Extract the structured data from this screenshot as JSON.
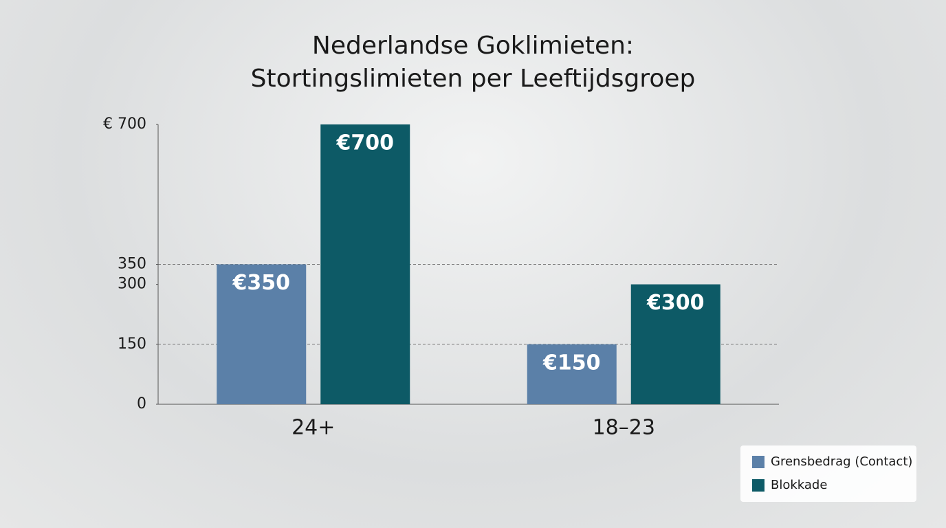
{
  "chart_data": {
    "type": "bar",
    "title": [
      "Nederlandse Goklimieten:",
      "Stortingslimieten per Leeftijdsgroep"
    ],
    "categories": [
      "24+",
      "18–23"
    ],
    "series": [
      {
        "name": "Grensbedrag (Contact)",
        "color": "#5b80a8",
        "values": [
          350,
          150
        ],
        "value_labels": [
          "€350",
          "€150"
        ]
      },
      {
        "name": "Blokkade",
        "color": "#0d5a66",
        "values": [
          700,
          300
        ],
        "value_labels": [
          "€700",
          "€300"
        ]
      }
    ],
    "ylim": [
      0,
      700
    ],
    "yticks": [
      0,
      150,
      300,
      350,
      {
        "value": 700,
        "label": "€ 700"
      }
    ],
    "gridlines": [
      150,
      350
    ],
    "legend": "bottom-right"
  }
}
